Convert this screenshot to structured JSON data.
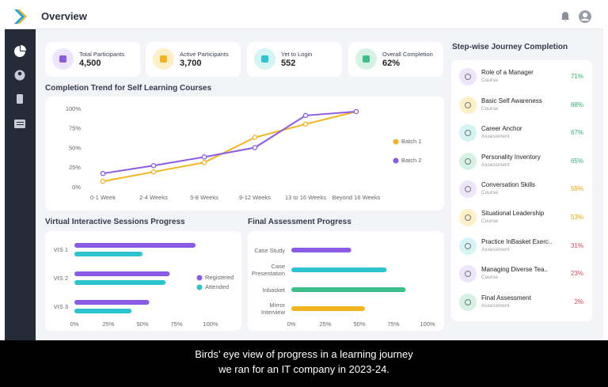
{
  "header": {
    "title": "Overview"
  },
  "stats": [
    {
      "label": "Total Participants",
      "value": "4,500"
    },
    {
      "label": "Active Participants",
      "value": "3,700"
    },
    {
      "label": "Yet to Login",
      "value": "552"
    },
    {
      "label": "Overall Completion",
      "value": "62%"
    }
  ],
  "chart_data": [
    {
      "type": "line",
      "title": "Completion Trend for Self Learning Courses",
      "categories": [
        "0-1 Week",
        "2-4 Weeks",
        "5-8 Weeks",
        "9-12 Weeks",
        "13 to 16 Weeks",
        "Beyond 16 Weeks"
      ],
      "series": [
        {
          "name": "Batch 1",
          "color": "#f2b51f",
          "values": [
            8,
            20,
            32,
            64,
            81,
            97
          ]
        },
        {
          "name": "Batch 2",
          "color": "#8a5ce6",
          "values": [
            18,
            28,
            39,
            51,
            92,
            97
          ]
        }
      ],
      "ylim": [
        0,
        100
      ],
      "yticks": [
        {
          "value": 0,
          "label": "0%"
        },
        {
          "value": 25,
          "label": "25%"
        },
        {
          "value": 50,
          "label": "50%"
        },
        {
          "value": 75,
          "label": "75%"
        },
        {
          "value": 100,
          "label": "100%"
        }
      ],
      "grid": false,
      "legend": "right"
    },
    {
      "type": "bar",
      "orientation": "horizontal",
      "title": "Virtual Interactive Sessions Progress",
      "categories": [
        "VIS 1",
        "VIS 2",
        "VIS 3"
      ],
      "series": [
        {
          "name": "Registered",
          "color": "#8a5ce6",
          "values": [
            89,
            70,
            55
          ]
        },
        {
          "name": "Attended",
          "color": "#2ec4cf",
          "values": [
            50,
            67,
            42
          ]
        }
      ],
      "xlim": [
        0,
        100
      ],
      "xticks": [
        {
          "value": 0,
          "label": "0%"
        },
        {
          "value": 25,
          "label": "25%"
        },
        {
          "value": 50,
          "label": "50%"
        },
        {
          "value": 75,
          "label": "75%"
        },
        {
          "value": 100,
          "label": "100%"
        }
      ],
      "legend": "right"
    },
    {
      "type": "bar",
      "orientation": "horizontal",
      "title": "Final Assessment Progress",
      "categories": [
        "Case Study",
        "Case Presentation",
        "Inbasket",
        "Mirror Interview"
      ],
      "values": [
        44,
        70,
        84,
        54
      ],
      "colors": [
        "#8a5ce6",
        "#2ec4cf",
        "#3dbf8a",
        "#f2b51f"
      ],
      "xlim": [
        0,
        100
      ],
      "xticks": [
        {
          "value": 0,
          "label": "0%"
        },
        {
          "value": 25,
          "label": "25%"
        },
        {
          "value": 50,
          "label": "50%"
        },
        {
          "value": 75,
          "label": "75%"
        },
        {
          "value": 100,
          "label": "100%"
        }
      ]
    }
  ],
  "journey": {
    "title": "Step-wise Journey Completion",
    "items": [
      {
        "name": "Role of a Manager",
        "type": "Course",
        "percent": "71%",
        "color": "#2bb673",
        "icon": "#ece5fb"
      },
      {
        "name": "Basic Self Awareness",
        "type": "Course",
        "percent": "68%",
        "color": "#2bb673",
        "icon": "#fdf0c8"
      },
      {
        "name": "Career Anchor",
        "type": "Assessment",
        "percent": "67%",
        "color": "#2bb673",
        "icon": "#d5f4f6"
      },
      {
        "name": "Personality Inventory",
        "type": "Assessment",
        "percent": "65%",
        "color": "#2bb673",
        "icon": "#d6f2e4"
      },
      {
        "name": "Conversation Skills",
        "type": "Course",
        "percent": "59%",
        "color": "#eea300",
        "icon": "#ece5fb"
      },
      {
        "name": "Situational Leadership",
        "type": "Course",
        "percent": "53%",
        "color": "#eea300",
        "icon": "#fdf0c8"
      },
      {
        "name": "Practice InBasket Exerc..",
        "type": "Assessment",
        "percent": "31%",
        "color": "#e8435a",
        "icon": "#d5f4f6"
      },
      {
        "name": "Managing Diverse Tea..",
        "type": "Course",
        "percent": "23%",
        "color": "#e8435a",
        "icon": "#ece5fb"
      },
      {
        "name": "Final Assessment",
        "type": "Assessment",
        "percent": "2%",
        "color": "#e8435a",
        "icon": "#d6f2e4"
      }
    ]
  },
  "caption": {
    "lines": [
      "Birds’ eye view of progress in a learning journey",
      "we ran for an IT company in 2023-24."
    ]
  }
}
